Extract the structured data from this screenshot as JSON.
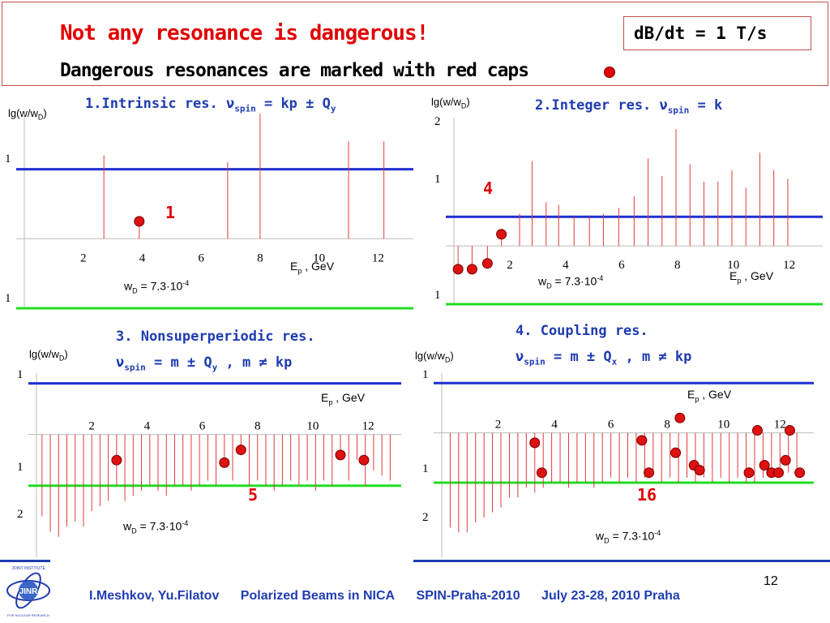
{
  "header": {
    "title": "Not any resonance is dangerous!",
    "subtitle": "Dangerous resonances are marked with red caps",
    "rate": "dB/dt = 1 T/s"
  },
  "colors": {
    "threshold1": "#1f2fd0",
    "threshold2": "#22dd22",
    "spike": "#e03a3a",
    "cap": "#dd1111"
  },
  "panels": [
    {
      "title_lines": [
        "1.Intrinsic res. ν",
        "spin",
        " = kp ± Q",
        "y"
      ],
      "ylabel": "lg(w/w",
      "ylabel_sub": "D",
      "ylabel_end": ")",
      "xlabel": "E",
      "xlabel_sub": "p",
      "xlabel_end": " , GeV",
      "wd": "w",
      "wd_sub": "D",
      "wd_val": " = 7.3·10",
      "wd_sup": "-4",
      "count": "1"
    },
    {
      "title_lines": [
        "2.Integer res. ν",
        "spin",
        " = k",
        ""
      ],
      "ylabel": "lg(w/w",
      "ylabel_sub": "D",
      "ylabel_end": ")",
      "xlabel": "E",
      "xlabel_sub": "p",
      "xlabel_end": " , GeV",
      "wd": "w",
      "wd_sub": "D",
      "wd_val": " = 7.3·10",
      "wd_sup": "-4",
      "count": "4"
    },
    {
      "title_lines": [
        "3. Nonsuperperiodic res.",
        "ν",
        "spin",
        " = m ± Q",
        "y",
        " , m ≠ kp"
      ],
      "ylabel": "lg(w/w",
      "ylabel_sub": "D",
      "ylabel_end": ")",
      "xlabel": "E",
      "xlabel_sub": "p",
      "xlabel_end": " , GeV",
      "wd": "w",
      "wd_sub": "D",
      "wd_val": " = 7.3·10",
      "wd_sup": "-4",
      "count": "5"
    },
    {
      "title_lines": [
        "4. Coupling res.",
        "ν",
        "spin",
        " = m ± Q",
        "x",
        " , m ≠ kp"
      ],
      "ylabel": "lg(w/w",
      "ylabel_sub": "D",
      "ylabel_end": ")",
      "xlabel": "E",
      "xlabel_sub": "p",
      "xlabel_end": " , GeV",
      "wd": "w",
      "wd_sub": "D",
      "wd_val": " = 7.3·10",
      "wd_sup": "-4",
      "count": "16"
    }
  ],
  "chart_data": [
    {
      "type": "bar",
      "xlim": [
        0,
        13.2
      ],
      "ylim": [
        -1,
        1.8
      ],
      "xticks": [
        "2",
        "4",
        "6",
        "8",
        "10",
        "12"
      ],
      "yticks": [
        "1",
        "1"
      ],
      "threshold_blue": 1,
      "threshold_green": -1,
      "spikes": [
        [
          2.7,
          1.2
        ],
        [
          3.9,
          0.25
        ],
        [
          6.9,
          1.1
        ],
        [
          8.0,
          1.8
        ],
        [
          11.0,
          1.4
        ],
        [
          12.2,
          1.4
        ]
      ],
      "caps": [
        [
          3.9,
          0.25
        ]
      ]
    },
    {
      "type": "bar",
      "xlim": [
        0,
        13.2
      ],
      "ylim": [
        -1,
        2.2
      ],
      "xticks": [
        "2",
        "4",
        "6",
        "8",
        "10",
        "12"
      ],
      "yticks": [
        "2",
        "1",
        "1"
      ],
      "threshold_blue": 0.5,
      "threshold_green": -1,
      "spikes": [
        [
          0.15,
          -0.4
        ],
        [
          0.65,
          -0.4
        ],
        [
          1.2,
          -0.3
        ],
        [
          1.7,
          0.2
        ],
        [
          2.35,
          0.55
        ],
        [
          2.8,
          1.45
        ],
        [
          3.3,
          0.75
        ],
        [
          3.75,
          0.7
        ],
        [
          4.3,
          0.5
        ],
        [
          4.85,
          0.5
        ],
        [
          5.35,
          0.55
        ],
        [
          5.9,
          0.65
        ],
        [
          6.45,
          0.85
        ],
        [
          6.95,
          1.5
        ],
        [
          7.45,
          1.2
        ],
        [
          7.95,
          2.0
        ],
        [
          8.45,
          1.4
        ],
        [
          8.95,
          1.1
        ],
        [
          9.45,
          1.1
        ],
        [
          9.95,
          1.3
        ],
        [
          10.45,
          1.0
        ],
        [
          10.95,
          1.6
        ],
        [
          11.45,
          1.3
        ],
        [
          11.95,
          1.15
        ]
      ],
      "caps": [
        [
          0.15,
          -0.4
        ],
        [
          0.65,
          -0.4
        ],
        [
          1.2,
          -0.3
        ],
        [
          1.7,
          0.2
        ]
      ]
    },
    {
      "type": "bar",
      "xlim": [
        0,
        13.2
      ],
      "ylim": [
        -2.4,
        1.2
      ],
      "xticks": [
        "2",
        "4",
        "6",
        "8",
        "10",
        "12"
      ],
      "yticks": [
        "1",
        "1",
        "2"
      ],
      "threshold_blue": 1,
      "threshold_green": -1,
      "spikes": [
        [
          0.2,
          -1.6
        ],
        [
          0.5,
          -1.9
        ],
        [
          0.8,
          -2.0
        ],
        [
          1.1,
          -1.8
        ],
        [
          1.4,
          -1.7
        ],
        [
          1.7,
          -1.8
        ],
        [
          2.0,
          -1.5
        ],
        [
          2.3,
          -1.4
        ],
        [
          2.6,
          -1.3
        ],
        [
          2.9,
          -1.0
        ],
        [
          3.2,
          -1.3
        ],
        [
          3.5,
          -1.2
        ],
        [
          3.8,
          -1.1
        ],
        [
          4.1,
          -1.0
        ],
        [
          4.4,
          -1.1
        ],
        [
          4.7,
          -1.2
        ],
        [
          5.0,
          -1.0
        ],
        [
          5.3,
          -1.0
        ],
        [
          5.6,
          -1.1
        ],
        [
          5.9,
          -1.0
        ],
        [
          6.2,
          -0.9
        ],
        [
          6.5,
          -1.0
        ],
        [
          6.8,
          -0.6
        ],
        [
          7.1,
          -0.9
        ],
        [
          7.4,
          -0.3
        ],
        [
          7.7,
          -1.0
        ],
        [
          8.0,
          -0.9
        ],
        [
          8.3,
          -1.0
        ],
        [
          8.6,
          -1.1
        ],
        [
          8.9,
          -1.0
        ],
        [
          9.2,
          -0.9
        ],
        [
          9.5,
          -1.0
        ],
        [
          9.8,
          -0.9
        ],
        [
          10.1,
          -1.1
        ],
        [
          10.4,
          -0.9
        ],
        [
          10.7,
          -1.0
        ],
        [
          11.0,
          -0.3
        ],
        [
          11.3,
          -0.9
        ],
        [
          11.6,
          -0.5
        ],
        [
          11.9,
          -1.0
        ],
        [
          12.2,
          -0.7
        ],
        [
          12.5,
          -0.8
        ],
        [
          12.8,
          -0.9
        ]
      ],
      "caps": [
        [
          2.9,
          -0.5
        ],
        [
          6.8,
          -0.55
        ],
        [
          7.4,
          -0.3
        ],
        [
          11.0,
          -0.4
        ],
        [
          11.85,
          -0.5
        ]
      ]
    },
    {
      "type": "bar",
      "xlim": [
        0,
        13.2
      ],
      "ylim": [
        -2.5,
        1.2
      ],
      "xticks": [
        "2",
        "4",
        "6",
        "8",
        "10",
        "12"
      ],
      "yticks": [
        "1",
        "1",
        "2"
      ],
      "threshold_blue": 1,
      "threshold_green": -1,
      "spikes": [
        [
          0.3,
          -1.9
        ],
        [
          0.6,
          -2.0
        ],
        [
          0.9,
          -2.0
        ],
        [
          1.2,
          -1.8
        ],
        [
          1.5,
          -1.7
        ],
        [
          1.8,
          -1.6
        ],
        [
          2.1,
          -1.5
        ],
        [
          2.4,
          -1.3
        ],
        [
          2.7,
          -1.3
        ],
        [
          3.0,
          -1.1
        ],
        [
          3.3,
          -1.2
        ],
        [
          3.6,
          -1.1
        ],
        [
          3.9,
          -1.0
        ],
        [
          4.2,
          -1.0
        ],
        [
          4.5,
          -1.1
        ],
        [
          4.8,
          -1.0
        ],
        [
          5.1,
          -1.0
        ],
        [
          5.4,
          -1.1
        ],
        [
          5.7,
          -1.0
        ],
        [
          6.0,
          -0.9
        ],
        [
          6.3,
          -1.0
        ],
        [
          6.6,
          -0.9
        ],
        [
          6.9,
          -1.0
        ],
        [
          7.2,
          -0.9
        ],
        [
          7.5,
          -0.8
        ],
        [
          7.8,
          -1.0
        ],
        [
          8.1,
          -0.9
        ],
        [
          8.4,
          -1.0
        ],
        [
          8.7,
          -0.9
        ],
        [
          9.0,
          -1.0
        ],
        [
          9.3,
          -0.9
        ],
        [
          9.6,
          -1.0
        ],
        [
          9.9,
          -0.9
        ],
        [
          10.2,
          -1.0
        ],
        [
          10.5,
          -0.9
        ],
        [
          10.8,
          -1.0
        ],
        [
          11.1,
          -1.0
        ],
        [
          11.4,
          -0.9
        ],
        [
          11.7,
          -0.9
        ],
        [
          12.0,
          -0.7
        ],
        [
          12.3,
          -0.8
        ],
        [
          12.6,
          -0.9
        ]
      ],
      "caps": [
        [
          3.3,
          -0.2
        ],
        [
          3.55,
          -0.8
        ],
        [
          7.1,
          -0.15
        ],
        [
          7.35,
          -0.8
        ],
        [
          8.3,
          -0.4
        ],
        [
          8.45,
          0.3
        ],
        [
          8.95,
          -0.65
        ],
        [
          9.15,
          -0.75
        ],
        [
          10.9,
          -0.8
        ],
        [
          11.2,
          0.05
        ],
        [
          11.45,
          -0.65
        ],
        [
          11.7,
          -0.8
        ],
        [
          11.95,
          -0.8
        ],
        [
          12.2,
          -0.55
        ],
        [
          12.35,
          0.05
        ],
        [
          12.7,
          -0.8
        ]
      ]
    }
  ],
  "footer": {
    "authors": "I.Meshkov, Yu.Filatov",
    "talk": "Polarized Beams in NICA",
    "conference": "SPIN-Praha-2010",
    "date": "July 23-28, 2010 Praha",
    "page": "12"
  },
  "logo": {
    "top": "JOINT INSTITUTE",
    "name": "JINR",
    "bottom": "FOR NUCLEAR RESEARCH"
  }
}
